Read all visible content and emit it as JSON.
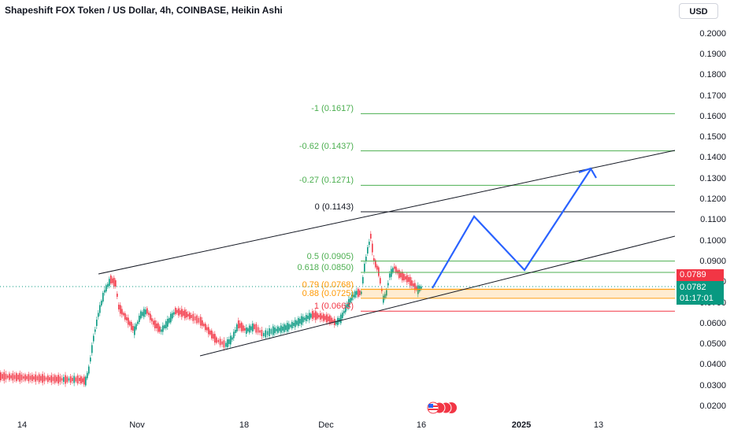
{
  "header": {
    "title": "Shapeshift FOX Token / US Dollar, 4h, COINBASE, Heikin Ashi"
  },
  "toolbar": {
    "currency_label": "USD"
  },
  "price_axis": {
    "ticks": [
      "0.2000",
      "0.1900",
      "0.1800",
      "0.1700",
      "0.1600",
      "0.1500",
      "0.1400",
      "0.1300",
      "0.1200",
      "0.1100",
      "0.1000",
      "0.0900",
      "0.0800",
      "0.0700",
      "0.0600",
      "0.0500",
      "0.0400",
      "0.0300",
      "0.0200"
    ]
  },
  "price_tags": {
    "upper": {
      "value": "0.0789",
      "color": "#f23645"
    },
    "current": {
      "value": "0.0782",
      "countdown": "01:17:01",
      "color": "#089981"
    }
  },
  "time_axis": {
    "labels": [
      "14",
      "Nov",
      "18",
      "Dec",
      "16",
      "2025",
      "13"
    ]
  },
  "fib_levels": [
    {
      "label": "-1 (0.1617)",
      "price": 0.1617,
      "color": "#4caf50"
    },
    {
      "label": "-0.62 (0.1437)",
      "price": 0.1437,
      "color": "#4caf50"
    },
    {
      "label": "-0.27 (0.1271)",
      "price": 0.1271,
      "color": "#4caf50"
    },
    {
      "label": "0 (0.1143)",
      "price": 0.1143,
      "color": "#131722"
    },
    {
      "label": "0.5 (0.0905)",
      "price": 0.0905,
      "color": "#4caf50"
    },
    {
      "label": "0.618 (0.0850)",
      "price": 0.085,
      "color": "#4caf50"
    },
    {
      "label": "0.79 (0.0768)",
      "price": 0.0768,
      "color": "#ff9800"
    },
    {
      "label": "0.88 (0.0725)",
      "price": 0.0725,
      "color": "#ff9800"
    },
    {
      "label": "1 (0.0663)",
      "price": 0.0663,
      "color": "#f23645"
    }
  ],
  "colors": {
    "up": "#089981",
    "down": "#f23645",
    "projection": "#2962ff",
    "channel": "#131722"
  }
}
